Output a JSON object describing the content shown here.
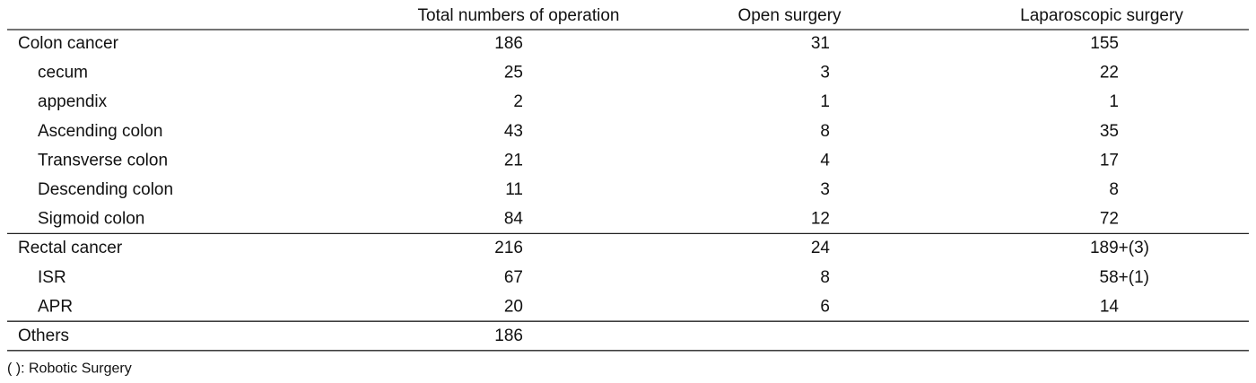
{
  "table": {
    "columns": [
      "Total numbers of operation",
      "Open surgery",
      "Laparoscopic surgery"
    ],
    "sections": [
      {
        "label": "Colon cancer",
        "values": [
          186,
          31,
          155
        ],
        "subrows": [
          {
            "label": "cecum",
            "values": [
              25,
              3,
              22
            ]
          },
          {
            "label": "appendix",
            "values": [
              2,
              1,
              1
            ]
          },
          {
            "label": "Ascending colon",
            "values": [
              43,
              8,
              35
            ]
          },
          {
            "label": "Transverse colon",
            "values": [
              21,
              4,
              17
            ]
          },
          {
            "label": "Descending colon",
            "values": [
              11,
              3,
              8
            ]
          },
          {
            "label": "Sigmoid colon",
            "values": [
              84,
              12,
              72
            ]
          }
        ]
      },
      {
        "label": "Rectal cancer",
        "values": [
          216,
          24,
          "189+(3)"
        ],
        "subrows": [
          {
            "label": "ISR",
            "values": [
              67,
              8,
              "58+(1)"
            ]
          },
          {
            "label": "APR",
            "values": [
              20,
              6,
              14
            ]
          }
        ]
      },
      {
        "label": "Others",
        "values": [
          186
        ],
        "subrows": []
      }
    ],
    "footnote": "( ): Robotic Surgery"
  }
}
